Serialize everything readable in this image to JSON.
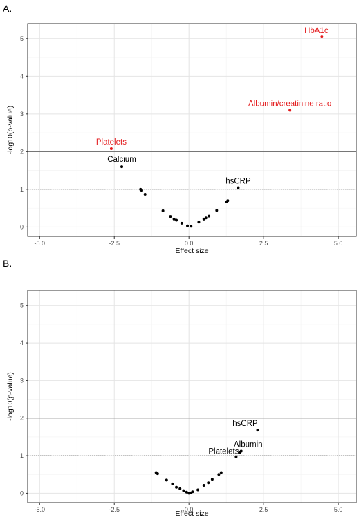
{
  "chart_data": [
    {
      "type": "scatter",
      "panel_label": "A.",
      "xlabel": "Effect size",
      "ylabel": "-log10(p-value)",
      "xlim": [
        -5.4,
        5.6
      ],
      "ylim": [
        -0.25,
        5.4
      ],
      "x_ticks": [
        -5.0,
        -2.5,
        0.0,
        2.5,
        5.0
      ],
      "x_tick_labels": [
        "-5.0",
        "-2.5",
        "0.0",
        "2.5",
        "5.0"
      ],
      "y_ticks": [
        0,
        1,
        2,
        3,
        4,
        5
      ],
      "y_tick_labels": [
        "0",
        "1",
        "2",
        "3",
        "4",
        "5"
      ],
      "grid": true,
      "reference_lines": [
        {
          "y": 2,
          "style": "solid"
        },
        {
          "y": 1,
          "style": "dotted"
        }
      ],
      "points": [
        {
          "x": 4.45,
          "y": 5.05,
          "label": "HbA1c",
          "highlight": true
        },
        {
          "x": 3.38,
          "y": 3.1,
          "label": "Albumin/creatinine ratio",
          "highlight": true
        },
        {
          "x": -2.6,
          "y": 2.08,
          "label": "Platelets",
          "highlight": true
        },
        {
          "x": -2.25,
          "y": 1.6,
          "label": "Calcium",
          "highlight": false
        },
        {
          "x": 1.65,
          "y": 1.04,
          "label": "hsCRP",
          "highlight": false
        },
        {
          "x": -1.62,
          "y": 1.0,
          "label": "",
          "highlight": false
        },
        {
          "x": -1.58,
          "y": 0.97,
          "label": "",
          "highlight": false
        },
        {
          "x": -1.47,
          "y": 0.87,
          "label": "",
          "highlight": false
        },
        {
          "x": -0.87,
          "y": 0.43,
          "label": "",
          "highlight": false
        },
        {
          "x": -0.62,
          "y": 0.28,
          "label": "",
          "highlight": false
        },
        {
          "x": -0.5,
          "y": 0.21,
          "label": "",
          "highlight": false
        },
        {
          "x": -0.42,
          "y": 0.18,
          "label": "",
          "highlight": false
        },
        {
          "x": -0.24,
          "y": 0.1,
          "label": "",
          "highlight": false
        },
        {
          "x": -0.05,
          "y": 0.03,
          "label": "",
          "highlight": false
        },
        {
          "x": 0.07,
          "y": 0.02,
          "label": "",
          "highlight": false
        },
        {
          "x": 0.33,
          "y": 0.13,
          "label": "",
          "highlight": false
        },
        {
          "x": 0.5,
          "y": 0.21,
          "label": "",
          "highlight": false
        },
        {
          "x": 0.57,
          "y": 0.24,
          "label": "",
          "highlight": false
        },
        {
          "x": 0.67,
          "y": 0.29,
          "label": "",
          "highlight": false
        },
        {
          "x": 0.93,
          "y": 0.44,
          "label": "",
          "highlight": false
        },
        {
          "x": 1.26,
          "y": 0.67,
          "label": "",
          "highlight": false
        },
        {
          "x": 1.3,
          "y": 0.7,
          "label": "",
          "highlight": false
        }
      ]
    },
    {
      "type": "scatter",
      "panel_label": "B.",
      "xlabel": "Effect size",
      "ylabel": "-log10(p-value)",
      "xlim": [
        -5.4,
        5.6
      ],
      "ylim": [
        -0.25,
        5.4
      ],
      "x_ticks": [
        -5.0,
        -2.5,
        0.0,
        2.5,
        5.0
      ],
      "x_tick_labels": [
        "-5.0",
        "-2.5",
        "0.0",
        "2.5",
        "5.0"
      ],
      "y_ticks": [
        0,
        1,
        2,
        3,
        4,
        5
      ],
      "y_tick_labels": [
        "0",
        "1",
        "2",
        "3",
        "4",
        "5"
      ],
      "grid": true,
      "reference_lines": [
        {
          "y": 2,
          "style": "solid"
        },
        {
          "y": 1,
          "style": "dotted"
        }
      ],
      "points": [
        {
          "x": 2.3,
          "y": 1.68,
          "label": "hsCRP",
          "highlight": false
        },
        {
          "x": 1.75,
          "y": 1.12,
          "label": "Albumin",
          "highlight": false
        },
        {
          "x": 1.58,
          "y": 0.97,
          "label": "Platelets",
          "highlight": false
        },
        {
          "x": 1.7,
          "y": 1.08,
          "label": "",
          "highlight": false
        },
        {
          "x": -1.1,
          "y": 0.55,
          "label": "",
          "highlight": false
        },
        {
          "x": -1.05,
          "y": 0.52,
          "label": "",
          "highlight": false
        },
        {
          "x": -0.75,
          "y": 0.35,
          "label": "",
          "highlight": false
        },
        {
          "x": -0.55,
          "y": 0.25,
          "label": "",
          "highlight": false
        },
        {
          "x": -0.42,
          "y": 0.16,
          "label": "",
          "highlight": false
        },
        {
          "x": -0.3,
          "y": 0.12,
          "label": "",
          "highlight": false
        },
        {
          "x": -0.18,
          "y": 0.07,
          "label": "",
          "highlight": false
        },
        {
          "x": -0.08,
          "y": 0.03,
          "label": "",
          "highlight": false
        },
        {
          "x": 0.0,
          "y": 0.0,
          "label": "",
          "highlight": false
        },
        {
          "x": 0.05,
          "y": 0.01,
          "label": "",
          "highlight": false
        },
        {
          "x": 0.12,
          "y": 0.04,
          "label": "",
          "highlight": false
        },
        {
          "x": 0.3,
          "y": 0.09,
          "label": "",
          "highlight": false
        },
        {
          "x": 0.5,
          "y": 0.21,
          "label": "",
          "highlight": false
        },
        {
          "x": 0.65,
          "y": 0.28,
          "label": "",
          "highlight": false
        },
        {
          "x": 0.78,
          "y": 0.37,
          "label": "",
          "highlight": false
        },
        {
          "x": 1.0,
          "y": 0.5,
          "label": "",
          "highlight": false
        },
        {
          "x": 1.08,
          "y": 0.55,
          "label": "",
          "highlight": false
        }
      ]
    }
  ],
  "colors": {
    "highlight": "#e31a1c",
    "default": "#000000",
    "panel_border": "#333333",
    "grid_major": "#e4e4e4",
    "grid_minor": "#f2f2f2",
    "reference_line": "#666666",
    "tick_label": "#4d4d4d"
  }
}
